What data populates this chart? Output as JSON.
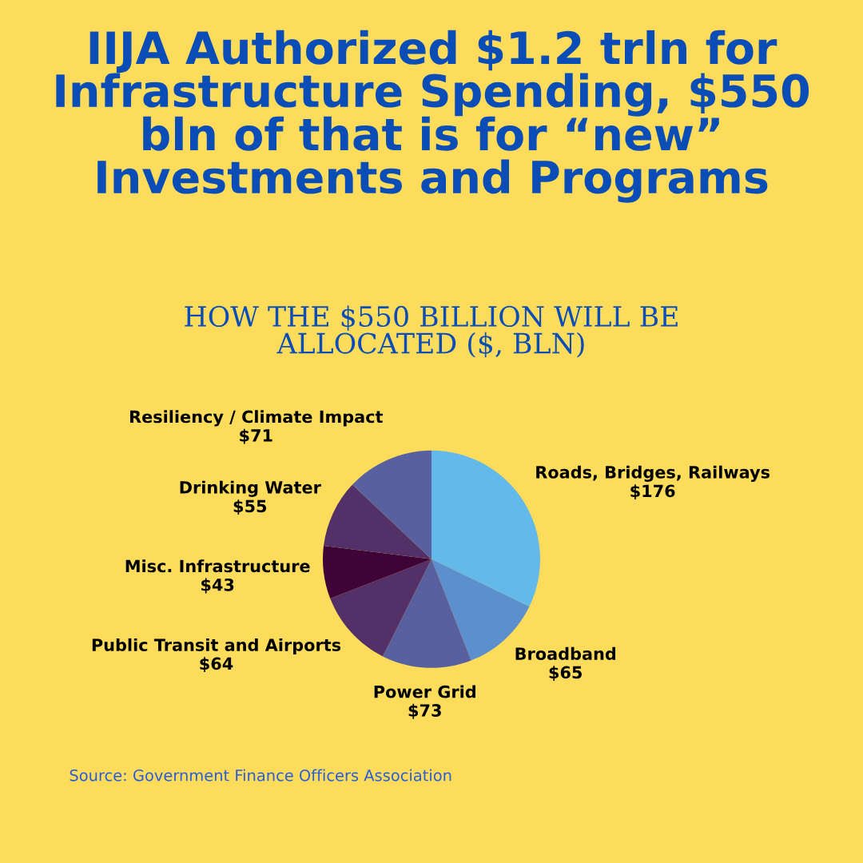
{
  "chart_data": {
    "type": "pie",
    "title": "IIJA Authorized $1.2 trln for\nInfrastructure Spending, $550\nbln of that is for “new”\nInvestments and Programs",
    "subtitle": "HOW THE $550 BILLION WILL BE\nALLOCATED ($, BLN)",
    "categories": [
      "Roads, Bridges, Railways",
      "Broadband",
      "Power Grid",
      "Public Transit and Airports",
      "Misc. Infrastructure",
      "Drinking Water",
      "Resiliency / Climate Impact"
    ],
    "values": [
      176,
      65,
      73,
      64,
      43,
      55,
      71
    ],
    "value_labels": [
      "$176",
      "$65",
      "$73",
      "$64",
      "$43",
      "$55",
      "$71"
    ],
    "colors": [
      "#63b9e9",
      "#5b8fce",
      "#58609f",
      "#533068",
      "#3e0337",
      "#533068",
      "#58609f"
    ],
    "annotations": [
      "Source: Government Finance Officers Association"
    ]
  }
}
